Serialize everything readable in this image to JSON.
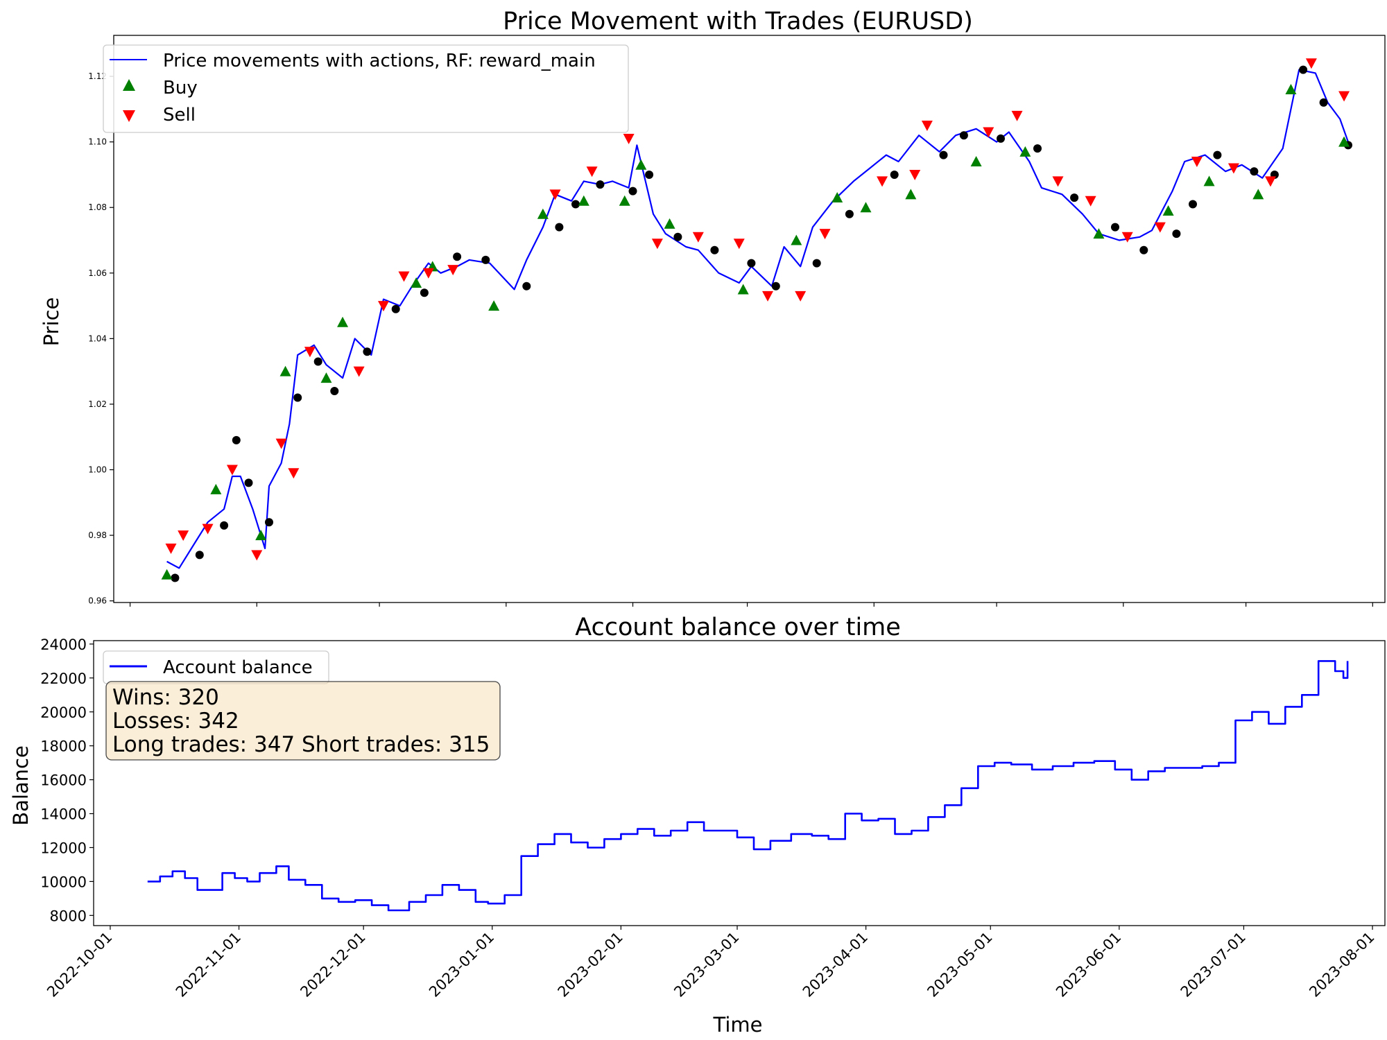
{
  "chart_data": [
    {
      "type": "line",
      "title": "Price Movement with Trades (EURUSD)",
      "xlabel": "",
      "ylabel": "Price",
      "x_axis": "date",
      "xlim": [
        "2022-09-27",
        "2023-08-04"
      ],
      "ylim": [
        0.9595,
        1.1325
      ],
      "y_ticks": [
        "0.96",
        "0.98",
        "1.00",
        "1.02",
        "1.04",
        "1.06",
        "1.08",
        "1.10",
        "1.12"
      ],
      "grid": false,
      "legend": {
        "placement": "upper-left",
        "entries": [
          "Price movements with actions, RF: reward_main",
          "Buy",
          "Sell"
        ]
      },
      "series": [
        {
          "name": "Price movements with actions, RF: reward_main",
          "color": "#0000ff",
          "x": [
            "2022-10-10",
            "2022-10-13",
            "2022-10-17",
            "2022-10-20",
            "2022-10-24",
            "2022-10-26",
            "2022-10-28",
            "2022-10-31",
            "2022-11-03",
            "2022-11-04",
            "2022-11-07",
            "2022-11-09",
            "2022-11-11",
            "2022-11-15",
            "2022-11-18",
            "2022-11-22",
            "2022-11-25",
            "2022-11-29",
            "2022-12-02",
            "2022-12-06",
            "2022-12-09",
            "2022-12-13",
            "2022-12-16",
            "2022-12-20",
            "2022-12-23",
            "2022-12-28",
            "2023-01-03",
            "2023-01-06",
            "2023-01-10",
            "2023-01-13",
            "2023-01-17",
            "2023-01-20",
            "2023-01-24",
            "2023-01-27",
            "2023-01-31",
            "2023-02-02",
            "2023-02-06",
            "2023-02-09",
            "2023-02-14",
            "2023-02-17",
            "2023-02-22",
            "2023-02-27",
            "2023-03-02",
            "2023-03-07",
            "2023-03-10",
            "2023-03-14",
            "2023-03-17",
            "2023-03-22",
            "2023-03-27",
            "2023-03-31",
            "2023-04-04",
            "2023-04-07",
            "2023-04-12",
            "2023-04-17",
            "2023-04-21",
            "2023-04-26",
            "2023-05-01",
            "2023-05-04",
            "2023-05-09",
            "2023-05-12",
            "2023-05-17",
            "2023-05-22",
            "2023-05-26",
            "2023-05-31",
            "2023-06-05",
            "2023-06-08",
            "2023-06-13",
            "2023-06-16",
            "2023-06-21",
            "2023-06-26",
            "2023-06-30",
            "2023-07-05",
            "2023-07-10",
            "2023-07-14",
            "2023-07-18",
            "2023-07-21",
            "2023-07-24",
            "2023-07-26"
          ],
          "y": [
            0.972,
            0.97,
            0.978,
            0.984,
            0.988,
            0.998,
            0.998,
            0.988,
            0.976,
            0.995,
            1.002,
            1.014,
            1.035,
            1.038,
            1.032,
            1.028,
            1.04,
            1.035,
            1.052,
            1.05,
            1.056,
            1.063,
            1.06,
            1.062,
            1.064,
            1.063,
            1.055,
            1.064,
            1.074,
            1.084,
            1.082,
            1.088,
            1.087,
            1.088,
            1.086,
            1.099,
            1.078,
            1.072,
            1.068,
            1.067,
            1.06,
            1.057,
            1.062,
            1.056,
            1.068,
            1.062,
            1.074,
            1.082,
            1.088,
            1.092,
            1.096,
            1.094,
            1.102,
            1.097,
            1.102,
            1.104,
            1.1,
            1.103,
            1.094,
            1.086,
            1.084,
            1.078,
            1.072,
            1.07,
            1.071,
            1.073,
            1.085,
            1.094,
            1.096,
            1.091,
            1.093,
            1.089,
            1.098,
            1.122,
            1.121,
            1.112,
            1.107,
            1.1
          ]
        }
      ],
      "markers": {
        "buy": {
          "name": "Buy",
          "color": "#008000",
          "shape": "triangle-up",
          "x": [
            "2022-10-10",
            "2022-10-22",
            "2022-11-02",
            "2022-11-08",
            "2022-11-18",
            "2022-11-22",
            "2022-12-10",
            "2022-12-14",
            "2022-12-29",
            "2023-01-10",
            "2023-01-20",
            "2023-01-30",
            "2023-02-03",
            "2023-02-10",
            "2023-02-28",
            "2023-03-13",
            "2023-03-23",
            "2023-03-30",
            "2023-04-10",
            "2023-04-26",
            "2023-05-08",
            "2023-05-26",
            "2023-06-12",
            "2023-06-22",
            "2023-07-04",
            "2023-07-12",
            "2023-07-25"
          ],
          "y": [
            0.968,
            0.994,
            0.98,
            1.03,
            1.028,
            1.045,
            1.057,
            1.062,
            1.05,
            1.078,
            1.082,
            1.082,
            1.093,
            1.075,
            1.055,
            1.07,
            1.083,
            1.08,
            1.084,
            1.094,
            1.097,
            1.072,
            1.079,
            1.088,
            1.084,
            1.116,
            1.1
          ]
        },
        "sell": {
          "name": "Sell",
          "color": "#ff0000",
          "shape": "triangle-down",
          "x": [
            "2022-10-11",
            "2022-10-14",
            "2022-10-20",
            "2022-10-26",
            "2022-11-01",
            "2022-11-07",
            "2022-11-10",
            "2022-11-14",
            "2022-11-26",
            "2022-12-02",
            "2022-12-07",
            "2022-12-13",
            "2022-12-19",
            "2023-01-13",
            "2023-01-22",
            "2023-01-31",
            "2023-02-07",
            "2023-02-17",
            "2023-02-27",
            "2023-03-06",
            "2023-03-14",
            "2023-03-20",
            "2023-04-03",
            "2023-04-11",
            "2023-04-14",
            "2023-04-29",
            "2023-05-06",
            "2023-05-16",
            "2023-05-24",
            "2023-06-02",
            "2023-06-10",
            "2023-06-19",
            "2023-06-28",
            "2023-07-07",
            "2023-07-17",
            "2023-07-25"
          ],
          "y": [
            0.976,
            0.98,
            0.982,
            1.0,
            0.974,
            1.008,
            0.999,
            1.036,
            1.03,
            1.05,
            1.059,
            1.06,
            1.061,
            1.084,
            1.091,
            1.101,
            1.069,
            1.071,
            1.069,
            1.053,
            1.053,
            1.072,
            1.088,
            1.09,
            1.105,
            1.103,
            1.108,
            1.088,
            1.082,
            1.071,
            1.074,
            1.094,
            1.092,
            1.088,
            1.124,
            1.114
          ]
        },
        "exit": {
          "color": "#000000",
          "shape": "circle",
          "x": [
            "2022-10-12",
            "2022-10-18",
            "2022-10-24",
            "2022-10-27",
            "2022-10-30",
            "2022-11-04",
            "2022-11-11",
            "2022-11-16",
            "2022-11-20",
            "2022-11-28",
            "2022-12-05",
            "2022-12-12",
            "2022-12-20",
            "2022-12-27",
            "2023-01-06",
            "2023-01-14",
            "2023-01-18",
            "2023-01-24",
            "2023-02-01",
            "2023-02-05",
            "2023-02-12",
            "2023-02-21",
            "2023-03-02",
            "2023-03-08",
            "2023-03-18",
            "2023-03-26",
            "2023-04-06",
            "2023-04-18",
            "2023-04-23",
            "2023-05-02",
            "2023-05-11",
            "2023-05-20",
            "2023-05-30",
            "2023-06-06",
            "2023-06-14",
            "2023-06-18",
            "2023-06-24",
            "2023-07-03",
            "2023-07-08",
            "2023-07-15",
            "2023-07-20",
            "2023-07-26"
          ],
          "y": [
            0.967,
            0.974,
            0.983,
            1.009,
            0.996,
            0.984,
            1.022,
            1.033,
            1.024,
            1.036,
            1.049,
            1.054,
            1.065,
            1.064,
            1.056,
            1.074,
            1.081,
            1.087,
            1.085,
            1.09,
            1.071,
            1.067,
            1.063,
            1.056,
            1.063,
            1.078,
            1.09,
            1.096,
            1.102,
            1.101,
            1.098,
            1.083,
            1.074,
            1.067,
            1.072,
            1.081,
            1.096,
            1.091,
            1.09,
            1.122,
            1.112,
            1.099
          ]
        }
      }
    },
    {
      "type": "line",
      "title": "Account balance over time",
      "xlabel": "Time",
      "ylabel": "Balance",
      "x_axis": "date",
      "xlim": [
        "2022-09-27",
        "2023-08-04"
      ],
      "ylim": [
        7400,
        24200
      ],
      "x_ticks": [
        "2022-10-01",
        "2022-11-01",
        "2022-12-01",
        "2023-01-01",
        "2023-02-01",
        "2023-03-01",
        "2023-04-01",
        "2023-05-01",
        "2023-06-01",
        "2023-07-01",
        "2023-08-01"
      ],
      "y_ticks": [
        "8000",
        "10000",
        "12000",
        "14000",
        "16000",
        "18000",
        "20000",
        "22000",
        "24000"
      ],
      "grid": false,
      "legend": {
        "placement": "upper-left",
        "entries": [
          "Account balance"
        ]
      },
      "series": [
        {
          "name": "Account balance",
          "color": "#0000ff",
          "x": [
            "2022-10-10",
            "2022-10-13",
            "2022-10-16",
            "2022-10-19",
            "2022-10-22",
            "2022-10-25",
            "2022-10-28",
            "2022-10-31",
            "2022-11-03",
            "2022-11-06",
            "2022-11-10",
            "2022-11-13",
            "2022-11-17",
            "2022-11-21",
            "2022-11-25",
            "2022-11-29",
            "2022-12-03",
            "2022-12-07",
            "2022-12-12",
            "2022-12-16",
            "2022-12-20",
            "2022-12-24",
            "2022-12-28",
            "2022-12-31",
            "2023-01-04",
            "2023-01-08",
            "2023-01-12",
            "2023-01-16",
            "2023-01-20",
            "2023-01-24",
            "2023-01-28",
            "2023-02-01",
            "2023-02-05",
            "2023-02-09",
            "2023-02-13",
            "2023-02-17",
            "2023-02-21",
            "2023-02-25",
            "2023-03-01",
            "2023-03-05",
            "2023-03-09",
            "2023-03-14",
            "2023-03-19",
            "2023-03-23",
            "2023-03-27",
            "2023-03-31",
            "2023-04-04",
            "2023-04-08",
            "2023-04-12",
            "2023-04-16",
            "2023-04-20",
            "2023-04-24",
            "2023-04-28",
            "2023-05-02",
            "2023-05-06",
            "2023-05-11",
            "2023-05-16",
            "2023-05-21",
            "2023-05-26",
            "2023-05-31",
            "2023-06-04",
            "2023-06-08",
            "2023-06-12",
            "2023-06-17",
            "2023-06-21",
            "2023-06-25",
            "2023-06-29",
            "2023-07-03",
            "2023-07-07",
            "2023-07-11",
            "2023-07-15",
            "2023-07-19",
            "2023-07-23",
            "2023-07-25",
            "2023-07-26"
          ],
          "y": [
            10000,
            10300,
            10600,
            10200,
            9500,
            9500,
            10500,
            10200,
            10000,
            10500,
            10900,
            10100,
            9800,
            9000,
            8800,
            8900,
            8600,
            8300,
            8800,
            9200,
            9800,
            9500,
            8800,
            8700,
            9200,
            11500,
            12200,
            12800,
            12300,
            12000,
            12500,
            12800,
            13100,
            12700,
            13000,
            13500,
            13000,
            13000,
            12600,
            11900,
            12400,
            12800,
            12700,
            12500,
            14000,
            13600,
            13700,
            12800,
            13000,
            13800,
            14500,
            15500,
            16800,
            17000,
            16900,
            16600,
            16800,
            17000,
            17100,
            16600,
            16000,
            16500,
            16700,
            16700,
            16800,
            17000,
            19500,
            20000,
            19300,
            20300,
            21000,
            23000,
            22400,
            22000,
            23000
          ]
        }
      ],
      "annotation": {
        "wins": "Wins: 320",
        "losses": "Losses: 342",
        "trades": "Long trades: 347 Short trades: 315"
      }
    }
  ]
}
